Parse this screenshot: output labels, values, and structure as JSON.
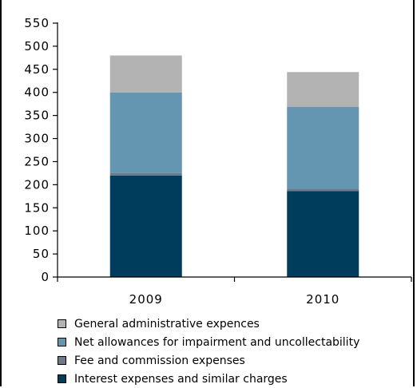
{
  "chart_data": {
    "type": "bar",
    "stacked": true,
    "categories": [
      "2009",
      "2010"
    ],
    "series": [
      {
        "name": "Interest expenses and similar charges",
        "values": [
          220,
          186
        ],
        "color": "#003d5c"
      },
      {
        "name": "Fee and commission expenses",
        "values": [
          5,
          5
        ],
        "color": "#6b7a86"
      },
      {
        "name": "Net allowances for impairment and uncollectability",
        "values": [
          175,
          178
        ],
        "color": "#6496b2"
      },
      {
        "name": "General administrative expences",
        "values": [
          80,
          75
        ],
        "color": "#b3b3b3"
      }
    ],
    "yticks": [
      "0",
      "50",
      "100",
      "150",
      "200",
      "250",
      "300",
      "350",
      "400",
      "450",
      "500",
      "550"
    ],
    "ylim": [
      0,
      550
    ],
    "grid": false,
    "legend_position": "bottom",
    "legend_order": [
      3,
      2,
      1,
      0
    ]
  }
}
